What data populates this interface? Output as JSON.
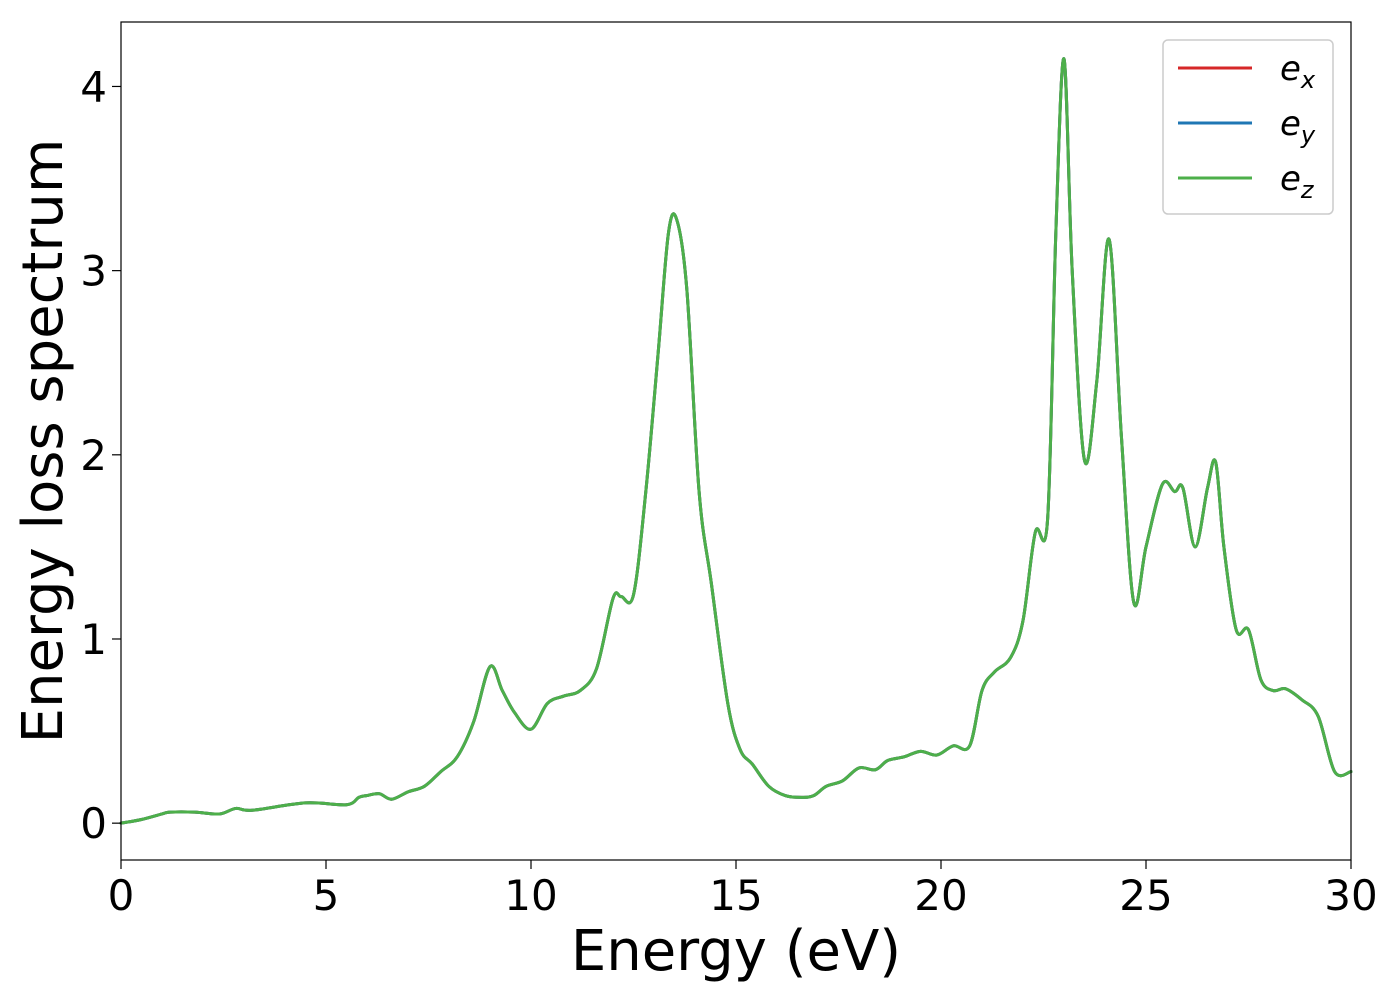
{
  "chart_data": {
    "type": "line",
    "title": "",
    "xlabel": "Energy (eV)",
    "ylabel": "Energy loss spectrum",
    "xlim": [
      0,
      30
    ],
    "ylim": [
      -0.2,
      4.35
    ],
    "xticks": [
      0,
      5,
      10,
      15,
      20,
      25,
      30
    ],
    "yticks": [
      0,
      1,
      2,
      3,
      4
    ],
    "grid": false,
    "legend_position": "top-right",
    "series": [
      {
        "name": "e",
        "sub": "x",
        "color": "#d62728",
        "x": [
          0,
          0.5,
          1.0,
          1.2,
          1.8,
          2.4,
          2.8,
          3.2,
          4.5,
          5.5,
          5.8,
          6.0,
          6.3,
          6.6,
          7.0,
          7.4,
          7.8,
          8.2,
          8.6,
          9.0,
          9.3,
          9.6,
          10.0,
          10.4,
          10.8,
          11.2,
          11.6,
          12.0,
          12.2,
          12.5,
          12.8,
          13.1,
          13.35,
          13.55,
          13.8,
          14.1,
          14.4,
          14.8,
          15.1,
          15.4,
          15.8,
          16.2,
          16.6,
          16.9,
          17.2,
          17.6,
          18.0,
          18.4,
          18.7,
          19.1,
          19.5,
          19.9,
          20.3,
          20.7,
          21.0,
          21.3,
          21.7,
          22.0,
          22.3,
          22.6,
          22.8,
          23.0,
          23.2,
          23.5,
          23.8,
          24.1,
          24.4,
          24.7,
          25.0,
          25.4,
          25.7,
          25.9,
          26.2,
          26.5,
          26.7,
          26.9,
          27.2,
          27.5,
          27.8,
          28.1,
          28.4,
          28.8,
          29.2,
          29.6,
          30.0
        ],
        "y": [
          0.0,
          0.02,
          0.05,
          0.06,
          0.06,
          0.05,
          0.08,
          0.07,
          0.11,
          0.1,
          0.14,
          0.15,
          0.16,
          0.13,
          0.17,
          0.2,
          0.28,
          0.36,
          0.55,
          0.85,
          0.72,
          0.6,
          0.51,
          0.65,
          0.69,
          0.72,
          0.84,
          1.22,
          1.23,
          1.24,
          1.8,
          2.55,
          3.2,
          3.28,
          2.9,
          1.8,
          1.3,
          0.65,
          0.4,
          0.32,
          0.2,
          0.15,
          0.14,
          0.15,
          0.2,
          0.23,
          0.3,
          0.29,
          0.34,
          0.36,
          0.39,
          0.37,
          0.42,
          0.42,
          0.72,
          0.82,
          0.9,
          1.1,
          1.58,
          1.65,
          3.2,
          4.15,
          3.0,
          1.97,
          2.4,
          3.17,
          2.1,
          1.2,
          1.5,
          1.84,
          1.8,
          1.82,
          1.5,
          1.82,
          1.96,
          1.5,
          1.05,
          1.05,
          0.78,
          0.72,
          0.73,
          0.67,
          0.58,
          0.28,
          0.28
        ]
      },
      {
        "name": "e",
        "sub": "y",
        "color": "#1f77b4",
        "x": [
          0,
          0.5,
          1.0,
          1.2,
          1.8,
          2.4,
          2.8,
          3.2,
          4.5,
          5.5,
          5.8,
          6.0,
          6.3,
          6.6,
          7.0,
          7.4,
          7.8,
          8.2,
          8.6,
          9.0,
          9.3,
          9.6,
          10.0,
          10.4,
          10.8,
          11.2,
          11.6,
          12.0,
          12.2,
          12.5,
          12.8,
          13.1,
          13.35,
          13.55,
          13.8,
          14.1,
          14.4,
          14.8,
          15.1,
          15.4,
          15.8,
          16.2,
          16.6,
          16.9,
          17.2,
          17.6,
          18.0,
          18.4,
          18.7,
          19.1,
          19.5,
          19.9,
          20.3,
          20.7,
          21.0,
          21.3,
          21.7,
          22.0,
          22.3,
          22.6,
          22.8,
          23.0,
          23.2,
          23.5,
          23.8,
          24.1,
          24.4,
          24.7,
          25.0,
          25.4,
          25.7,
          25.9,
          26.2,
          26.5,
          26.7,
          26.9,
          27.2,
          27.5,
          27.8,
          28.1,
          28.4,
          28.8,
          29.2,
          29.6,
          30.0
        ],
        "y": [
          0.0,
          0.02,
          0.05,
          0.06,
          0.06,
          0.05,
          0.08,
          0.07,
          0.11,
          0.1,
          0.14,
          0.15,
          0.16,
          0.13,
          0.17,
          0.2,
          0.28,
          0.36,
          0.55,
          0.85,
          0.72,
          0.6,
          0.51,
          0.65,
          0.69,
          0.72,
          0.84,
          1.22,
          1.23,
          1.24,
          1.8,
          2.55,
          3.2,
          3.28,
          2.9,
          1.8,
          1.3,
          0.65,
          0.4,
          0.32,
          0.2,
          0.15,
          0.14,
          0.15,
          0.2,
          0.23,
          0.3,
          0.29,
          0.34,
          0.36,
          0.39,
          0.37,
          0.42,
          0.42,
          0.72,
          0.82,
          0.9,
          1.1,
          1.58,
          1.65,
          3.2,
          4.15,
          3.0,
          1.97,
          2.4,
          3.17,
          2.1,
          1.2,
          1.5,
          1.84,
          1.8,
          1.82,
          1.5,
          1.82,
          1.96,
          1.5,
          1.05,
          1.05,
          0.78,
          0.72,
          0.73,
          0.67,
          0.58,
          0.28,
          0.28
        ]
      },
      {
        "name": "e",
        "sub": "z",
        "color": "#4daf4a",
        "x": [
          0,
          0.5,
          1.0,
          1.2,
          1.8,
          2.4,
          2.8,
          3.2,
          4.5,
          5.5,
          5.8,
          6.0,
          6.3,
          6.6,
          7.0,
          7.4,
          7.8,
          8.2,
          8.6,
          9.0,
          9.3,
          9.6,
          10.0,
          10.4,
          10.8,
          11.2,
          11.6,
          12.0,
          12.2,
          12.5,
          12.8,
          13.1,
          13.35,
          13.55,
          13.8,
          14.1,
          14.4,
          14.8,
          15.1,
          15.4,
          15.8,
          16.2,
          16.6,
          16.9,
          17.2,
          17.6,
          18.0,
          18.4,
          18.7,
          19.1,
          19.5,
          19.9,
          20.3,
          20.7,
          21.0,
          21.3,
          21.7,
          22.0,
          22.3,
          22.6,
          22.8,
          23.0,
          23.2,
          23.5,
          23.8,
          24.1,
          24.4,
          24.7,
          25.0,
          25.4,
          25.7,
          25.9,
          26.2,
          26.5,
          26.7,
          26.9,
          27.2,
          27.5,
          27.8,
          28.1,
          28.4,
          28.8,
          29.2,
          29.6,
          30.0
        ],
        "y": [
          0.0,
          0.02,
          0.05,
          0.06,
          0.06,
          0.05,
          0.08,
          0.07,
          0.11,
          0.1,
          0.14,
          0.15,
          0.16,
          0.13,
          0.17,
          0.2,
          0.28,
          0.36,
          0.55,
          0.85,
          0.72,
          0.6,
          0.51,
          0.65,
          0.69,
          0.72,
          0.84,
          1.22,
          1.23,
          1.24,
          1.8,
          2.55,
          3.2,
          3.28,
          2.9,
          1.8,
          1.3,
          0.65,
          0.4,
          0.32,
          0.2,
          0.15,
          0.14,
          0.15,
          0.2,
          0.23,
          0.3,
          0.29,
          0.34,
          0.36,
          0.39,
          0.37,
          0.42,
          0.42,
          0.72,
          0.82,
          0.9,
          1.1,
          1.58,
          1.65,
          3.2,
          4.15,
          3.0,
          1.97,
          2.4,
          3.17,
          2.1,
          1.2,
          1.5,
          1.84,
          1.8,
          1.82,
          1.5,
          1.82,
          1.96,
          1.5,
          1.05,
          1.05,
          0.78,
          0.72,
          0.73,
          0.67,
          0.58,
          0.28,
          0.28
        ]
      }
    ]
  }
}
